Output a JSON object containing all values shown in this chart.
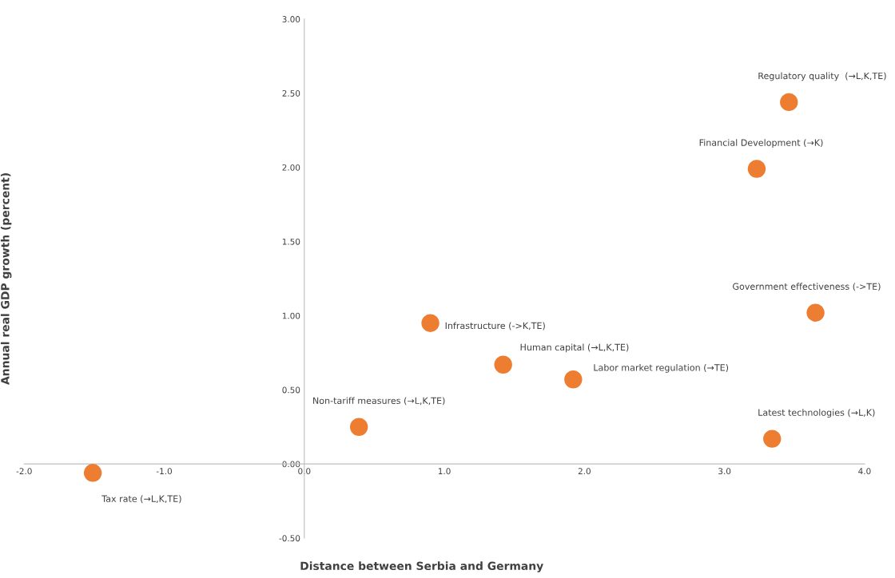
{
  "chart_data": {
    "type": "scatter",
    "xlabel": "Distance between Serbia and Germany",
    "ylabel": "Annual real GDP growth (percent)",
    "x": [
      -1.51,
      0.39,
      0.9,
      1.42,
      1.92,
      3.23,
      3.46,
      3.65,
      3.34
    ],
    "series": [
      {
        "color": "#ed7d31",
        "values": [
          -0.06,
          0.25,
          0.95,
          0.67,
          0.57,
          1.99,
          2.44,
          1.02,
          0.17
        ]
      }
    ],
    "marker": "circle",
    "xlim": [
      -2.0,
      4.0
    ],
    "ylim": [
      -0.5,
      3.0
    ],
    "xticks": [
      {
        "value": -2,
        "label": "-2.0"
      },
      {
        "value": -1,
        "label": "-1.0"
      },
      {
        "value": 0,
        "label": "0.0"
      },
      {
        "value": 1,
        "label": "1.0"
      },
      {
        "value": 2,
        "label": "2.0"
      },
      {
        "value": 3,
        "label": "3.0"
      },
      {
        "value": 4,
        "label": "4.0"
      }
    ],
    "yticks": [
      {
        "value": -0.5,
        "label": "-0.50"
      },
      {
        "value": 0,
        "label": "0.00"
      },
      {
        "value": 0.5,
        "label": "0.50"
      },
      {
        "value": 1,
        "label": "1.00"
      },
      {
        "value": 1.5,
        "label": "1.50"
      },
      {
        "value": 2,
        "label": "2.00"
      },
      {
        "value": 2.5,
        "label": "2.50"
      },
      {
        "value": 3,
        "label": "3.00"
      }
    ],
    "grid": false,
    "legend": false,
    "annotations": [
      {
        "text": "Tax rate (→L,K,TE)",
        "x": -1.51,
        "y": -0.06
      },
      {
        "text": "Non-tariff measures (→L,K,TE)",
        "x": 0.39,
        "y": 0.25
      },
      {
        "text": "Infrastructure (->K,TE)",
        "x": 0.9,
        "y": 0.95
      },
      {
        "text": "Human capital (→L,K,TE)",
        "x": 1.42,
        "y": 0.67
      },
      {
        "text": "Labor market regulation (→TE)",
        "x": 1.92,
        "y": 0.57
      },
      {
        "text": "Financial Development (→K)",
        "x": 3.23,
        "y": 1.99
      },
      {
        "text": "Regulatory quality  (→L,K,TE)",
        "x": 3.46,
        "y": 2.44
      },
      {
        "text": "Government effectiveness (->TE)",
        "x": 3.65,
        "y": 1.02
      },
      {
        "text": "Latest technologies (→L,K)",
        "x": 3.34,
        "y": 0.17
      }
    ]
  }
}
